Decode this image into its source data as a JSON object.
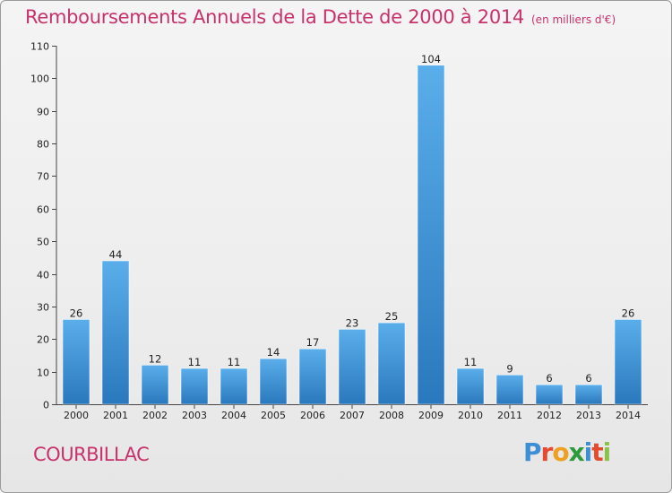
{
  "title": "Remboursements Annuels de la Dette de 2000 à 2014",
  "subtitle": "(en milliers d'€)",
  "commune": "COURBILLAC",
  "logo": {
    "letters": [
      "P",
      "r",
      "o",
      "x",
      "i",
      "t",
      "i"
    ],
    "colors": [
      "#3c8fd4",
      "#e64a2e",
      "#f0a020",
      "#2d9a3c",
      "#3c8fd4",
      "#e64a2e",
      "#8bc34a"
    ]
  },
  "colors": {
    "title": "#c8326a",
    "bar_light": "#5aaeea",
    "bar_dark": "#2a78bd",
    "axis": "#444444",
    "grid_tick": "#444444"
  },
  "chart_data": {
    "type": "bar",
    "title": "Remboursements Annuels de la Dette de 2000 à 2014",
    "subtitle": "(en milliers d'€)",
    "categories": [
      "2000",
      "2001",
      "2002",
      "2003",
      "2004",
      "2005",
      "2006",
      "2007",
      "2008",
      "2009",
      "2010",
      "2011",
      "2012",
      "2013",
      "2014"
    ],
    "values": [
      26,
      44,
      12,
      11,
      11,
      14,
      17,
      23,
      25,
      104,
      11,
      9,
      6,
      6,
      26
    ],
    "ylim": [
      0,
      110
    ],
    "yticks": [
      0,
      10,
      20,
      30,
      40,
      50,
      60,
      70,
      80,
      90,
      100,
      110
    ],
    "xlabel": "",
    "ylabel": "",
    "grid": false,
    "data_labels": true
  }
}
